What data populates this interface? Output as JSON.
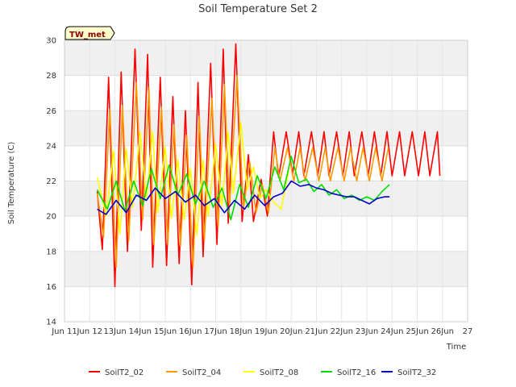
{
  "chart_data": {
    "type": "line",
    "title": "Soil Temperature Set 2",
    "xlabel": "Time",
    "ylabel": "Soil Temperature (C)",
    "station_label": "TW_met",
    "xlim": [
      11,
      27
    ],
    "ylim": [
      14,
      30
    ],
    "x_ticks": [
      {
        "x": 11,
        "label": "Jun 11"
      },
      {
        "x": 12,
        "label": "Jun 12"
      },
      {
        "x": 13,
        "label": "13Jun"
      },
      {
        "x": 14,
        "label": "14Jun"
      },
      {
        "x": 15,
        "label": "15Jun"
      },
      {
        "x": 16,
        "label": "16Jun"
      },
      {
        "x": 17,
        "label": "17Jun"
      },
      {
        "x": 18,
        "label": "18Jun"
      },
      {
        "x": 19,
        "label": "19Jun"
      },
      {
        "x": 20,
        "label": "20Jun"
      },
      {
        "x": 21,
        "label": "21Jun"
      },
      {
        "x": 22,
        "label": "22Jun"
      },
      {
        "x": 23,
        "label": "23Jun"
      },
      {
        "x": 24,
        "label": "24Jun"
      },
      {
        "x": 25,
        "label": "25Jun"
      },
      {
        "x": 26,
        "label": "26Jun"
      },
      {
        "x": 27,
        "label": "27"
      }
    ],
    "y_ticks": [
      14,
      16,
      18,
      20,
      22,
      24,
      26,
      28,
      30
    ],
    "grid": true,
    "legend_position": "bottom",
    "series": [
      {
        "name": "SoilT2_02",
        "color": "#ff0000",
        "x": [
          12.3,
          12.5,
          12.75,
          13.0,
          13.25,
          13.5,
          13.8,
          14.05,
          14.3,
          14.5,
          14.8,
          15.05,
          15.3,
          15.55,
          15.8,
          16.05,
          16.3,
          16.5,
          16.8,
          17.05,
          17.3,
          17.5,
          17.8,
          18.05,
          18.3,
          18.5,
          18.8,
          19.05,
          19.3,
          19.5,
          19.8,
          20.05,
          20.3,
          20.5,
          20.8,
          21.05,
          21.3,
          21.5,
          21.8,
          22.05,
          22.3,
          22.5,
          22.8,
          23.05,
          23.3,
          23.55,
          23.8,
          24.0,
          24.3,
          24.5,
          24.8,
          25.05,
          25.3,
          25.5,
          25.8,
          25.9
        ],
        "values": [
          21.4,
          18.1,
          27.9,
          16.0,
          28.2,
          18.0,
          29.5,
          19.2,
          29.2,
          17.1,
          27.9,
          17.2,
          26.8,
          17.3,
          26.0,
          16.1,
          27.6,
          17.7,
          28.7,
          18.4,
          29.5,
          19.6,
          29.8,
          19.7,
          23.5,
          19.7,
          22.1,
          20.0,
          24.8,
          22.2,
          24.8,
          22.4,
          24.8,
          22.3,
          24.8,
          22.3,
          24.8,
          22.3,
          24.8,
          22.3,
          24.8,
          22.3,
          24.8,
          22.3,
          24.8,
          22.3,
          24.8,
          22.3,
          24.8,
          22.3,
          24.8,
          22.3,
          24.8,
          22.3,
          24.8,
          22.3
        ]
      },
      {
        "name": "SoilT2_04",
        "color": "#ff9900",
        "x": [
          12.3,
          12.55,
          12.8,
          13.05,
          13.3,
          13.55,
          13.85,
          14.1,
          14.35,
          14.55,
          14.85,
          15.1,
          15.35,
          15.6,
          15.85,
          16.1,
          16.35,
          16.55,
          16.85,
          17.1,
          17.35,
          17.55,
          17.85,
          18.1,
          18.35,
          18.6,
          18.85,
          19.1,
          19.35,
          19.55,
          19.85,
          20.1,
          20.35,
          20.55,
          20.85,
          21.1,
          21.35,
          21.55,
          21.85,
          22.1,
          22.35,
          22.6,
          22.85,
          23.1,
          23.35,
          23.6,
          23.85
        ],
        "values": [
          21.3,
          18.8,
          26.1,
          17.1,
          26.3,
          18.6,
          27.6,
          19.8,
          27.3,
          18.4,
          26.2,
          18.4,
          25.2,
          18.3,
          24.6,
          17.1,
          25.7,
          18.6,
          26.7,
          19.4,
          27.5,
          20.5,
          28.0,
          20.4,
          23.1,
          20.2,
          21.8,
          20.2,
          23.9,
          22.0,
          23.9,
          22.0,
          23.9,
          22.0,
          23.9,
          22.0,
          23.9,
          22.0,
          23.9,
          22.0,
          23.9,
          22.0,
          23.9,
          22.0,
          23.9,
          22.0,
          23.9
        ]
      },
      {
        "name": "SoilT2_08",
        "color": "#ffff00",
        "x": [
          12.3,
          12.65,
          12.95,
          13.2,
          13.45,
          13.7,
          14.0,
          14.25,
          14.5,
          14.7,
          15.0,
          15.25,
          15.5,
          15.75,
          16.0,
          16.25,
          16.5,
          16.7,
          17.0,
          17.25,
          17.5,
          17.7,
          18.0,
          18.25,
          18.5,
          18.75,
          19.0,
          19.3,
          19.6,
          19.9
        ],
        "values": [
          22.2,
          20.0,
          23.7,
          19.0,
          23.8,
          20.5,
          24.8,
          21.0,
          24.8,
          20.2,
          23.9,
          19.9,
          23.2,
          19.8,
          22.7,
          18.9,
          23.2,
          20.0,
          24.1,
          20.6,
          24.8,
          21.3,
          25.3,
          21.5,
          22.8,
          21.0,
          21.5,
          20.8,
          20.4,
          22.6
        ]
      },
      {
        "name": "SoilT2_16",
        "color": "#00dd00",
        "x": [
          12.3,
          12.7,
          13.05,
          13.4,
          13.75,
          14.1,
          14.45,
          14.8,
          15.15,
          15.5,
          15.85,
          16.2,
          16.55,
          16.9,
          17.25,
          17.6,
          17.95,
          18.3,
          18.65,
          19.0,
          19.35,
          19.7,
          20.0,
          20.3,
          20.6,
          20.9,
          21.2,
          21.5,
          21.8,
          22.1,
          22.4,
          22.7,
          23.0,
          23.3,
          23.6,
          23.9
        ],
        "values": [
          21.5,
          20.4,
          22.0,
          20.3,
          22.0,
          20.6,
          22.7,
          21.0,
          22.9,
          21.2,
          22.4,
          20.7,
          22.0,
          20.5,
          21.6,
          19.8,
          21.8,
          20.5,
          22.3,
          21.0,
          22.8,
          21.5,
          23.4,
          21.9,
          22.1,
          21.4,
          21.8,
          21.2,
          21.5,
          21.0,
          21.2,
          20.9,
          21.1,
          20.9,
          21.4,
          21.8
        ]
      },
      {
        "name": "SoilT2_32",
        "color": "#0000cc",
        "x": [
          12.3,
          12.65,
          13.05,
          13.45,
          13.85,
          14.25,
          14.6,
          15.0,
          15.4,
          15.8,
          16.2,
          16.55,
          16.95,
          17.35,
          17.75,
          18.15,
          18.55,
          18.95,
          19.3,
          19.65,
          20.0,
          20.35,
          20.7,
          21.0,
          21.3,
          21.6,
          21.9,
          22.2,
          22.5,
          22.8,
          23.1,
          23.4,
          23.7,
          23.9
        ],
        "values": [
          20.4,
          20.1,
          20.9,
          20.2,
          21.2,
          20.9,
          21.6,
          21.0,
          21.4,
          20.8,
          21.2,
          20.6,
          21.0,
          20.2,
          20.9,
          20.4,
          21.2,
          20.6,
          21.1,
          21.3,
          22.0,
          21.7,
          21.8,
          21.6,
          21.5,
          21.3,
          21.2,
          21.1,
          21.1,
          20.9,
          20.7,
          21.0,
          21.1,
          21.1
        ]
      }
    ]
  }
}
